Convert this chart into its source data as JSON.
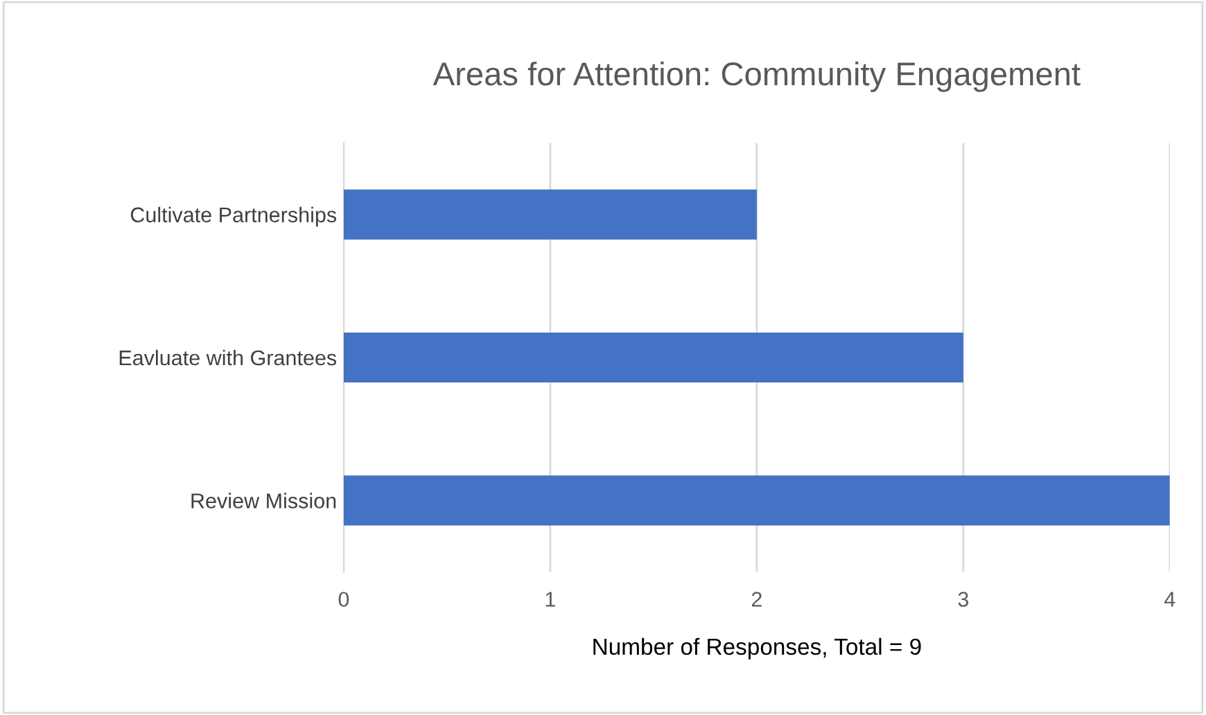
{
  "chart_data": {
    "type": "bar",
    "orientation": "horizontal",
    "title": "Areas for Attention: Community Engagement",
    "xlabel": "Number of Responses, Total = 9",
    "categories": [
      "Cultivate Partnerships",
      "Eavluate with Grantees",
      "Review Mission"
    ],
    "values": [
      2,
      3,
      4
    ],
    "color": "#4472c4",
    "xlim": [
      0,
      4
    ],
    "xticks": [
      0,
      1,
      2,
      3,
      4
    ],
    "grid": "x"
  }
}
